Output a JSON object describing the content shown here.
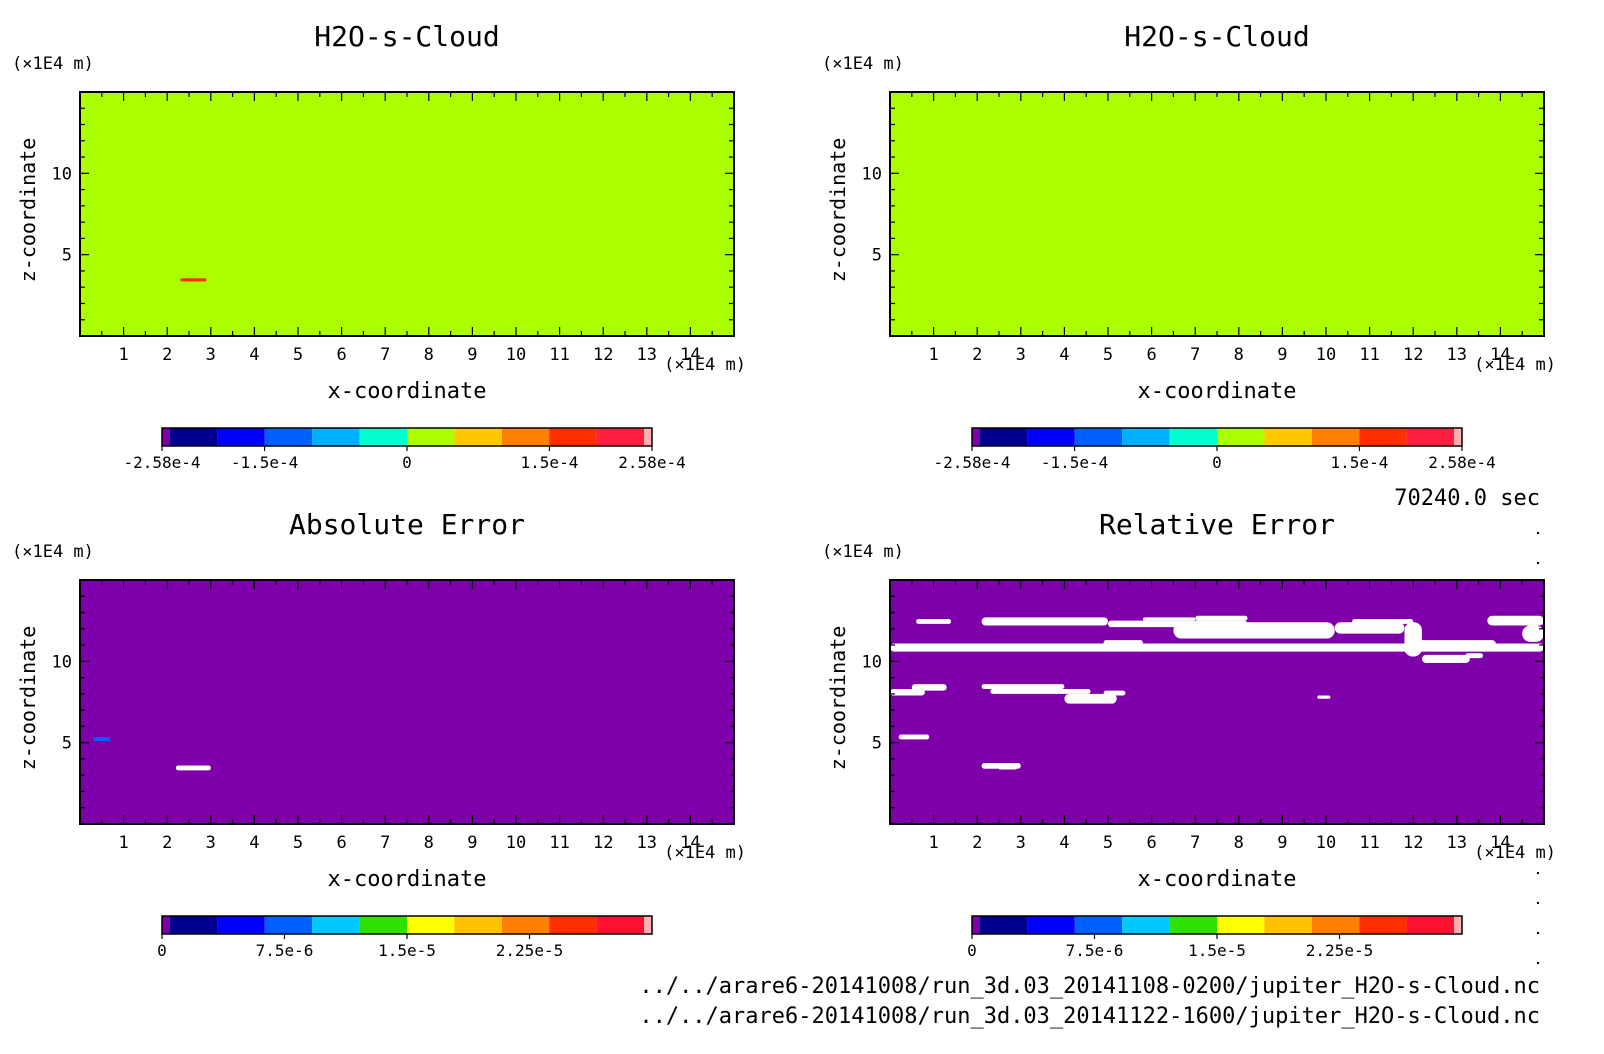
{
  "time_label": "70240.0 sec",
  "files": [
    "../../arare6-20141008/run_3d.03_20141108-0200/jupiter_H2O-s-Cloud.nc",
    "../../arare6-20141008/run_3d.03_20141122-1600/jupiter_H2O-s-Cloud.nc"
  ],
  "colors": {
    "background_field": "#aaff00",
    "error_field": "#7f00aa",
    "value_palette": [
      "#7f00aa",
      "#00008f",
      "#0000ff",
      "#0060ff",
      "#00b0ff",
      "#00ffd0",
      "#aaff00",
      "#ffc800",
      "#ff8000",
      "#ff3000",
      "#ff2040",
      "#ffb0b0"
    ],
    "error_palette": [
      "#7f00aa",
      "#00008f",
      "#0000ff",
      "#0060ff",
      "#00c8ff",
      "#30e000",
      "#ffff00",
      "#ffc000",
      "#ff8000",
      "#ff3000",
      "#ff1030",
      "#ffb0b0"
    ]
  },
  "chart_data": [
    {
      "type": "heatmap",
      "title": "H2O-s-Cloud",
      "xlabel": "x-coordinate",
      "ylabel": "z-coordinate",
      "x_unit": "(×1E4 m)",
      "y_unit": "(×1E4 m)",
      "xlim": [
        0,
        15
      ],
      "ylim": [
        0,
        15
      ],
      "x_ticks": [
        1,
        2,
        3,
        4,
        5,
        6,
        7,
        8,
        9,
        10,
        11,
        12,
        13,
        14
      ],
      "y_ticks": [
        5,
        10
      ],
      "colorbar": {
        "range": [
          -0.000258,
          0.000258
        ],
        "tick_values": [
          -0.000258,
          -0.00015,
          0,
          0.00015,
          0.000258
        ],
        "tick_labels": [
          "-2.58e-4",
          "-1.5e-4",
          "0",
          "1.5e-4",
          "2.58e-4"
        ]
      },
      "field_value": 0,
      "features": [
        {
          "x": [
            2.3,
            2.9
          ],
          "z": [
            3.35,
            3.55
          ],
          "value": 0.0002
        }
      ]
    },
    {
      "type": "heatmap",
      "title": "H2O-s-Cloud",
      "xlabel": "x-coordinate",
      "ylabel": "z-coordinate",
      "x_unit": "(×1E4 m)",
      "y_unit": "(×1E4 m)",
      "xlim": [
        0,
        15
      ],
      "ylim": [
        0,
        15
      ],
      "x_ticks": [
        1,
        2,
        3,
        4,
        5,
        6,
        7,
        8,
        9,
        10,
        11,
        12,
        13,
        14
      ],
      "y_ticks": [
        5,
        10
      ],
      "colorbar": {
        "range": [
          -0.000258,
          0.000258
        ],
        "tick_values": [
          -0.000258,
          -0.00015,
          0,
          0.00015,
          0.000258
        ],
        "tick_labels": [
          "-2.58e-4",
          "-1.5e-4",
          "0",
          "1.5e-4",
          "2.58e-4"
        ]
      },
      "field_value": 0,
      "features": []
    },
    {
      "type": "heatmap",
      "title": "Absolute Error",
      "xlabel": "x-coordinate",
      "ylabel": "z-coordinate",
      "x_unit": "(×1E4 m)",
      "y_unit": "(×1E4 m)",
      "xlim": [
        0,
        15
      ],
      "ylim": [
        0,
        15
      ],
      "x_ticks": [
        1,
        2,
        3,
        4,
        5,
        6,
        7,
        8,
        9,
        10,
        11,
        12,
        13,
        14
      ],
      "y_ticks": [
        5,
        10
      ],
      "colorbar": {
        "range": [
          0,
          3e-05
        ],
        "tick_values": [
          0,
          7.5e-06,
          1.5e-05,
          2.25e-05
        ],
        "tick_labels": [
          "0",
          "7.5e-6",
          "1.5e-5",
          "2.25e-5"
        ]
      },
      "field_value": 0,
      "features": [
        {
          "x": [
            2.2,
            3.0
          ],
          "z": [
            3.3,
            3.6
          ],
          "value": "white"
        },
        {
          "x": [
            0.3,
            0.7
          ],
          "z": [
            5.1,
            5.35
          ],
          "value": 6e-06
        }
      ]
    },
    {
      "type": "heatmap",
      "title": "Relative Error",
      "xlabel": "x-coordinate",
      "ylabel": "z-coordinate",
      "x_unit": "(×1E4 m)",
      "y_unit": "(×1E4 m)",
      "xlim": [
        0,
        15
      ],
      "ylim": [
        0,
        15
      ],
      "x_ticks": [
        1,
        2,
        3,
        4,
        5,
        6,
        7,
        8,
        9,
        10,
        11,
        12,
        13,
        14
      ],
      "y_ticks": [
        5,
        10
      ],
      "colorbar": {
        "range": [
          0,
          3e-05
        ],
        "tick_values": [
          0,
          7.5e-06,
          1.5e-05,
          2.25e-05
        ],
        "tick_labels": [
          "0",
          "7.5e-6",
          "1.5e-5",
          "2.25e-5"
        ]
      },
      "field_value": 0,
      "features": [
        {
          "x": [
            0.0,
            15.0
          ],
          "z": [
            10.6,
            11.1
          ],
          "value": "white"
        },
        {
          "x": [
            0.6,
            1.4
          ],
          "z": [
            12.3,
            12.6
          ],
          "value": "white"
        },
        {
          "x": [
            2.1,
            5.0
          ],
          "z": [
            12.2,
            12.7
          ],
          "value": "white"
        },
        {
          "x": [
            4.9,
            5.8
          ],
          "z": [
            11.0,
            11.3
          ],
          "value": "white"
        },
        {
          "x": [
            5.0,
            8.2
          ],
          "z": [
            12.1,
            12.5
          ],
          "value": "white"
        },
        {
          "x": [
            5.8,
            7.0
          ],
          "z": [
            12.5,
            12.7
          ],
          "value": "white"
        },
        {
          "x": [
            6.5,
            10.2
          ],
          "z": [
            11.4,
            12.4
          ],
          "value": "white"
        },
        {
          "x": [
            7.0,
            8.2
          ],
          "z": [
            12.5,
            12.8
          ],
          "value": "white"
        },
        {
          "x": [
            10.2,
            11.8
          ],
          "z": [
            11.7,
            12.4
          ],
          "value": "white"
        },
        {
          "x": [
            10.6,
            12.0
          ],
          "z": [
            12.3,
            12.6
          ],
          "value": "white"
        },
        {
          "x": [
            11.8,
            12.2
          ],
          "z": [
            10.3,
            12.4
          ],
          "value": "white"
        },
        {
          "x": [
            12.0,
            13.9
          ],
          "z": [
            10.8,
            11.3
          ],
          "value": "white"
        },
        {
          "x": [
            12.2,
            13.3
          ],
          "z": [
            9.9,
            10.4
          ],
          "value": "white"
        },
        {
          "x": [
            13.2,
            13.6
          ],
          "z": [
            10.2,
            10.5
          ],
          "value": "white"
        },
        {
          "x": [
            13.7,
            15.0
          ],
          "z": [
            12.2,
            12.8
          ],
          "value": "white"
        },
        {
          "x": [
            14.5,
            15.0
          ],
          "z": [
            11.2,
            12.2
          ],
          "value": "white"
        },
        {
          "x": [
            0.0,
            0.8
          ],
          "z": [
            7.9,
            8.3
          ],
          "value": "white"
        },
        {
          "x": [
            0.5,
            1.3
          ],
          "z": [
            8.2,
            8.6
          ],
          "value": "white"
        },
        {
          "x": [
            2.1,
            4.0
          ],
          "z": [
            8.3,
            8.6
          ],
          "value": "white"
        },
        {
          "x": [
            2.3,
            4.6
          ],
          "z": [
            8.0,
            8.3
          ],
          "value": "white"
        },
        {
          "x": [
            4.0,
            5.2
          ],
          "z": [
            7.4,
            8.0
          ],
          "value": "white"
        },
        {
          "x": [
            4.9,
            5.4
          ],
          "z": [
            7.9,
            8.2
          ],
          "value": "white"
        },
        {
          "x": [
            9.8,
            10.1
          ],
          "z": [
            7.7,
            7.9
          ],
          "value": "white"
        },
        {
          "x": [
            0.2,
            0.9
          ],
          "z": [
            5.2,
            5.5
          ],
          "value": "white"
        },
        {
          "x": [
            2.1,
            3.0
          ],
          "z": [
            3.4,
            3.75
          ],
          "value": "white"
        },
        {
          "x": [
            2.5,
            2.9
          ],
          "z": [
            3.35,
            3.45
          ],
          "value": "white"
        }
      ]
    }
  ]
}
